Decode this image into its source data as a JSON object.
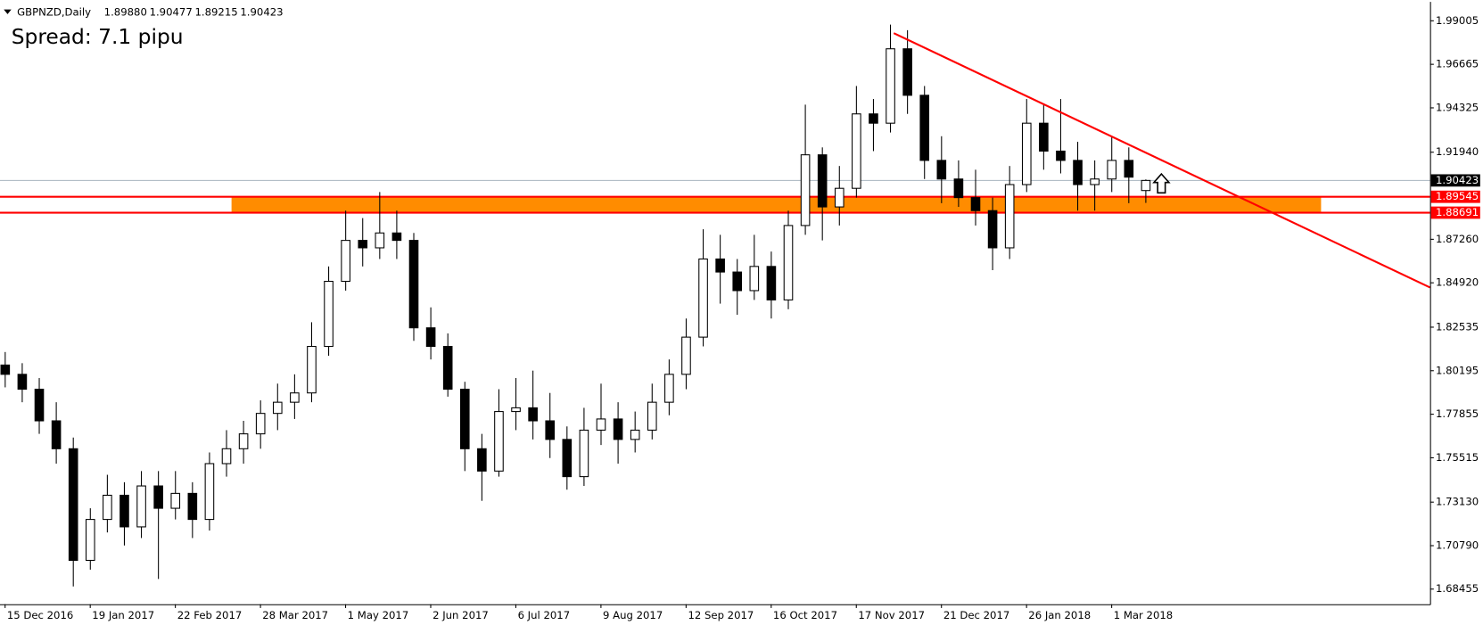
{
  "chart_data": {
    "type": "candlestick",
    "title": "GBPNZD,Daily",
    "quote": [
      "1.89880",
      "1.90477",
      "1.89215",
      "1.90423"
    ],
    "annotation": "Spread: 7.1 pipu",
    "xlim": [
      -0.3,
      83.7
    ],
    "xticks": [
      {
        "value": 0,
        "label": "15 Dec 2016"
      },
      {
        "value": 5,
        "label": "19 Jan 2017"
      },
      {
        "value": 10,
        "label": "22 Feb 2017"
      },
      {
        "value": 15,
        "label": "28 Mar 2017"
      },
      {
        "value": 20,
        "label": "1 May 2017"
      },
      {
        "value": 25,
        "label": "2 Jun 2017"
      },
      {
        "value": 30,
        "label": "6 Jul 2017"
      },
      {
        "value": 35,
        "label": "9 Aug 2017"
      },
      {
        "value": 40,
        "label": "12 Sep 2017"
      },
      {
        "value": 45,
        "label": "16 Oct 2017"
      },
      {
        "value": 50,
        "label": "17 Nov 2017"
      },
      {
        "value": 55,
        "label": "21 Dec 2017"
      },
      {
        "value": 60,
        "label": "26 Jan 2018"
      },
      {
        "value": 65,
        "label": "1 Mar 2018"
      }
    ],
    "ylim": [
      1.67642,
      1.99768
    ],
    "yticks": [
      1.99005,
      1.96665,
      1.94325,
      {
        "value": 1.9194,
        "label": "1.91940"
      },
      {
        "value": 1.8726,
        "label": "1.87260"
      },
      {
        "value": 1.8492,
        "label": "1.84920"
      },
      1.82535,
      1.80195,
      1.77855,
      1.75515,
      {
        "value": 1.7313,
        "label": "1.73130"
      },
      {
        "value": 1.7079,
        "label": "1.70790"
      },
      1.68455
    ],
    "up_color": "#ffffff",
    "down_color": "#000000",
    "open": [
      1.805,
      1.8,
      1.792,
      1.775,
      1.76,
      1.7,
      1.722,
      1.735,
      1.718,
      1.74,
      1.728,
      1.736,
      1.722,
      1.752,
      1.76,
      1.768,
      1.779,
      1.785,
      1.79,
      1.815,
      1.85,
      1.872,
      1.868,
      1.876,
      1.872,
      1.825,
      1.815,
      1.792,
      1.76,
      1.748,
      1.78,
      1.782,
      1.775,
      1.765,
      1.745,
      1.77,
      1.776,
      1.765,
      1.77,
      1.785,
      1.8,
      1.82,
      1.862,
      1.855,
      1.845,
      1.858,
      1.84,
      1.88,
      1.918,
      1.89,
      1.9,
      1.94,
      1.935,
      1.975,
      1.95,
      1.915,
      1.905,
      1.895,
      1.888,
      1.868,
      1.902,
      1.935,
      1.92,
      1.915,
      1.902,
      1.905,
      1.915,
      1.8988
    ],
    "high": [
      1.812,
      1.806,
      1.798,
      1.785,
      1.766,
      1.728,
      1.746,
      1.742,
      1.748,
      1.748,
      1.748,
      1.742,
      1.758,
      1.77,
      1.775,
      1.786,
      1.795,
      1.8,
      1.828,
      1.858,
      1.888,
      1.884,
      1.898,
      1.888,
      1.876,
      1.836,
      1.822,
      1.796,
      1.768,
      1.792,
      1.798,
      1.802,
      1.79,
      1.772,
      1.782,
      1.795,
      1.785,
      1.78,
      1.795,
      1.808,
      1.83,
      1.878,
      1.875,
      1.862,
      1.875,
      1.866,
      1.888,
      1.945,
      1.922,
      1.912,
      1.955,
      1.948,
      1.988,
      1.985,
      1.955,
      1.928,
      1.915,
      1.91,
      1.895,
      1.912,
      1.948,
      1.945,
      1.948,
      1.925,
      1.915,
      1.928,
      1.922,
      1.90477
    ],
    "low": [
      1.793,
      1.785,
      1.768,
      1.752,
      1.686,
      1.695,
      1.715,
      1.708,
      1.712,
      1.69,
      1.722,
      1.712,
      1.716,
      1.745,
      1.752,
      1.76,
      1.77,
      1.776,
      1.785,
      1.81,
      1.845,
      1.858,
      1.862,
      1.862,
      1.818,
      1.808,
      1.788,
      1.748,
      1.732,
      1.745,
      1.77,
      1.765,
      1.755,
      1.738,
      1.74,
      1.762,
      1.752,
      1.758,
      1.765,
      1.778,
      1.792,
      1.815,
      1.838,
      1.832,
      1.84,
      1.83,
      1.835,
      1.875,
      1.872,
      1.88,
      1.895,
      1.92,
      1.93,
      1.94,
      1.905,
      1.892,
      1.89,
      1.88,
      1.856,
      1.862,
      1.898,
      1.91,
      1.908,
      1.888,
      1.888,
      1.898,
      1.892,
      1.89215
    ],
    "close": [
      1.8,
      1.792,
      1.775,
      1.76,
      1.7,
      1.722,
      1.735,
      1.718,
      1.74,
      1.728,
      1.736,
      1.722,
      1.752,
      1.76,
      1.768,
      1.779,
      1.785,
      1.79,
      1.815,
      1.85,
      1.872,
      1.868,
      1.876,
      1.872,
      1.825,
      1.815,
      1.792,
      1.76,
      1.748,
      1.78,
      1.782,
      1.775,
      1.765,
      1.745,
      1.77,
      1.776,
      1.765,
      1.77,
      1.785,
      1.8,
      1.82,
      1.862,
      1.855,
      1.845,
      1.858,
      1.84,
      1.88,
      1.918,
      1.89,
      1.9,
      1.94,
      1.935,
      1.975,
      1.95,
      1.915,
      1.905,
      1.895,
      1.888,
      1.868,
      1.902,
      1.935,
      1.92,
      1.915,
      1.902,
      1.905,
      1.915,
      1.906,
      1.90423
    ],
    "levels": [
      {
        "value": 1.90423,
        "color": "#a8b4bf",
        "label_color": "#000000"
      },
      {
        "value": 1.89545,
        "color": "#ff0000",
        "label_color": "#ff0000"
      },
      {
        "value": 1.88691,
        "color": "#ff0000",
        "label_color": "#ff0000"
      }
    ],
    "zone": {
      "x": [
        13.3,
        77.3
      ],
      "color": "#ff8c00"
    },
    "trendline": {
      "x": [
        52.2,
        83.7
      ],
      "y": [
        1.9834,
        1.8467
      ],
      "color": "#ff0000"
    }
  }
}
